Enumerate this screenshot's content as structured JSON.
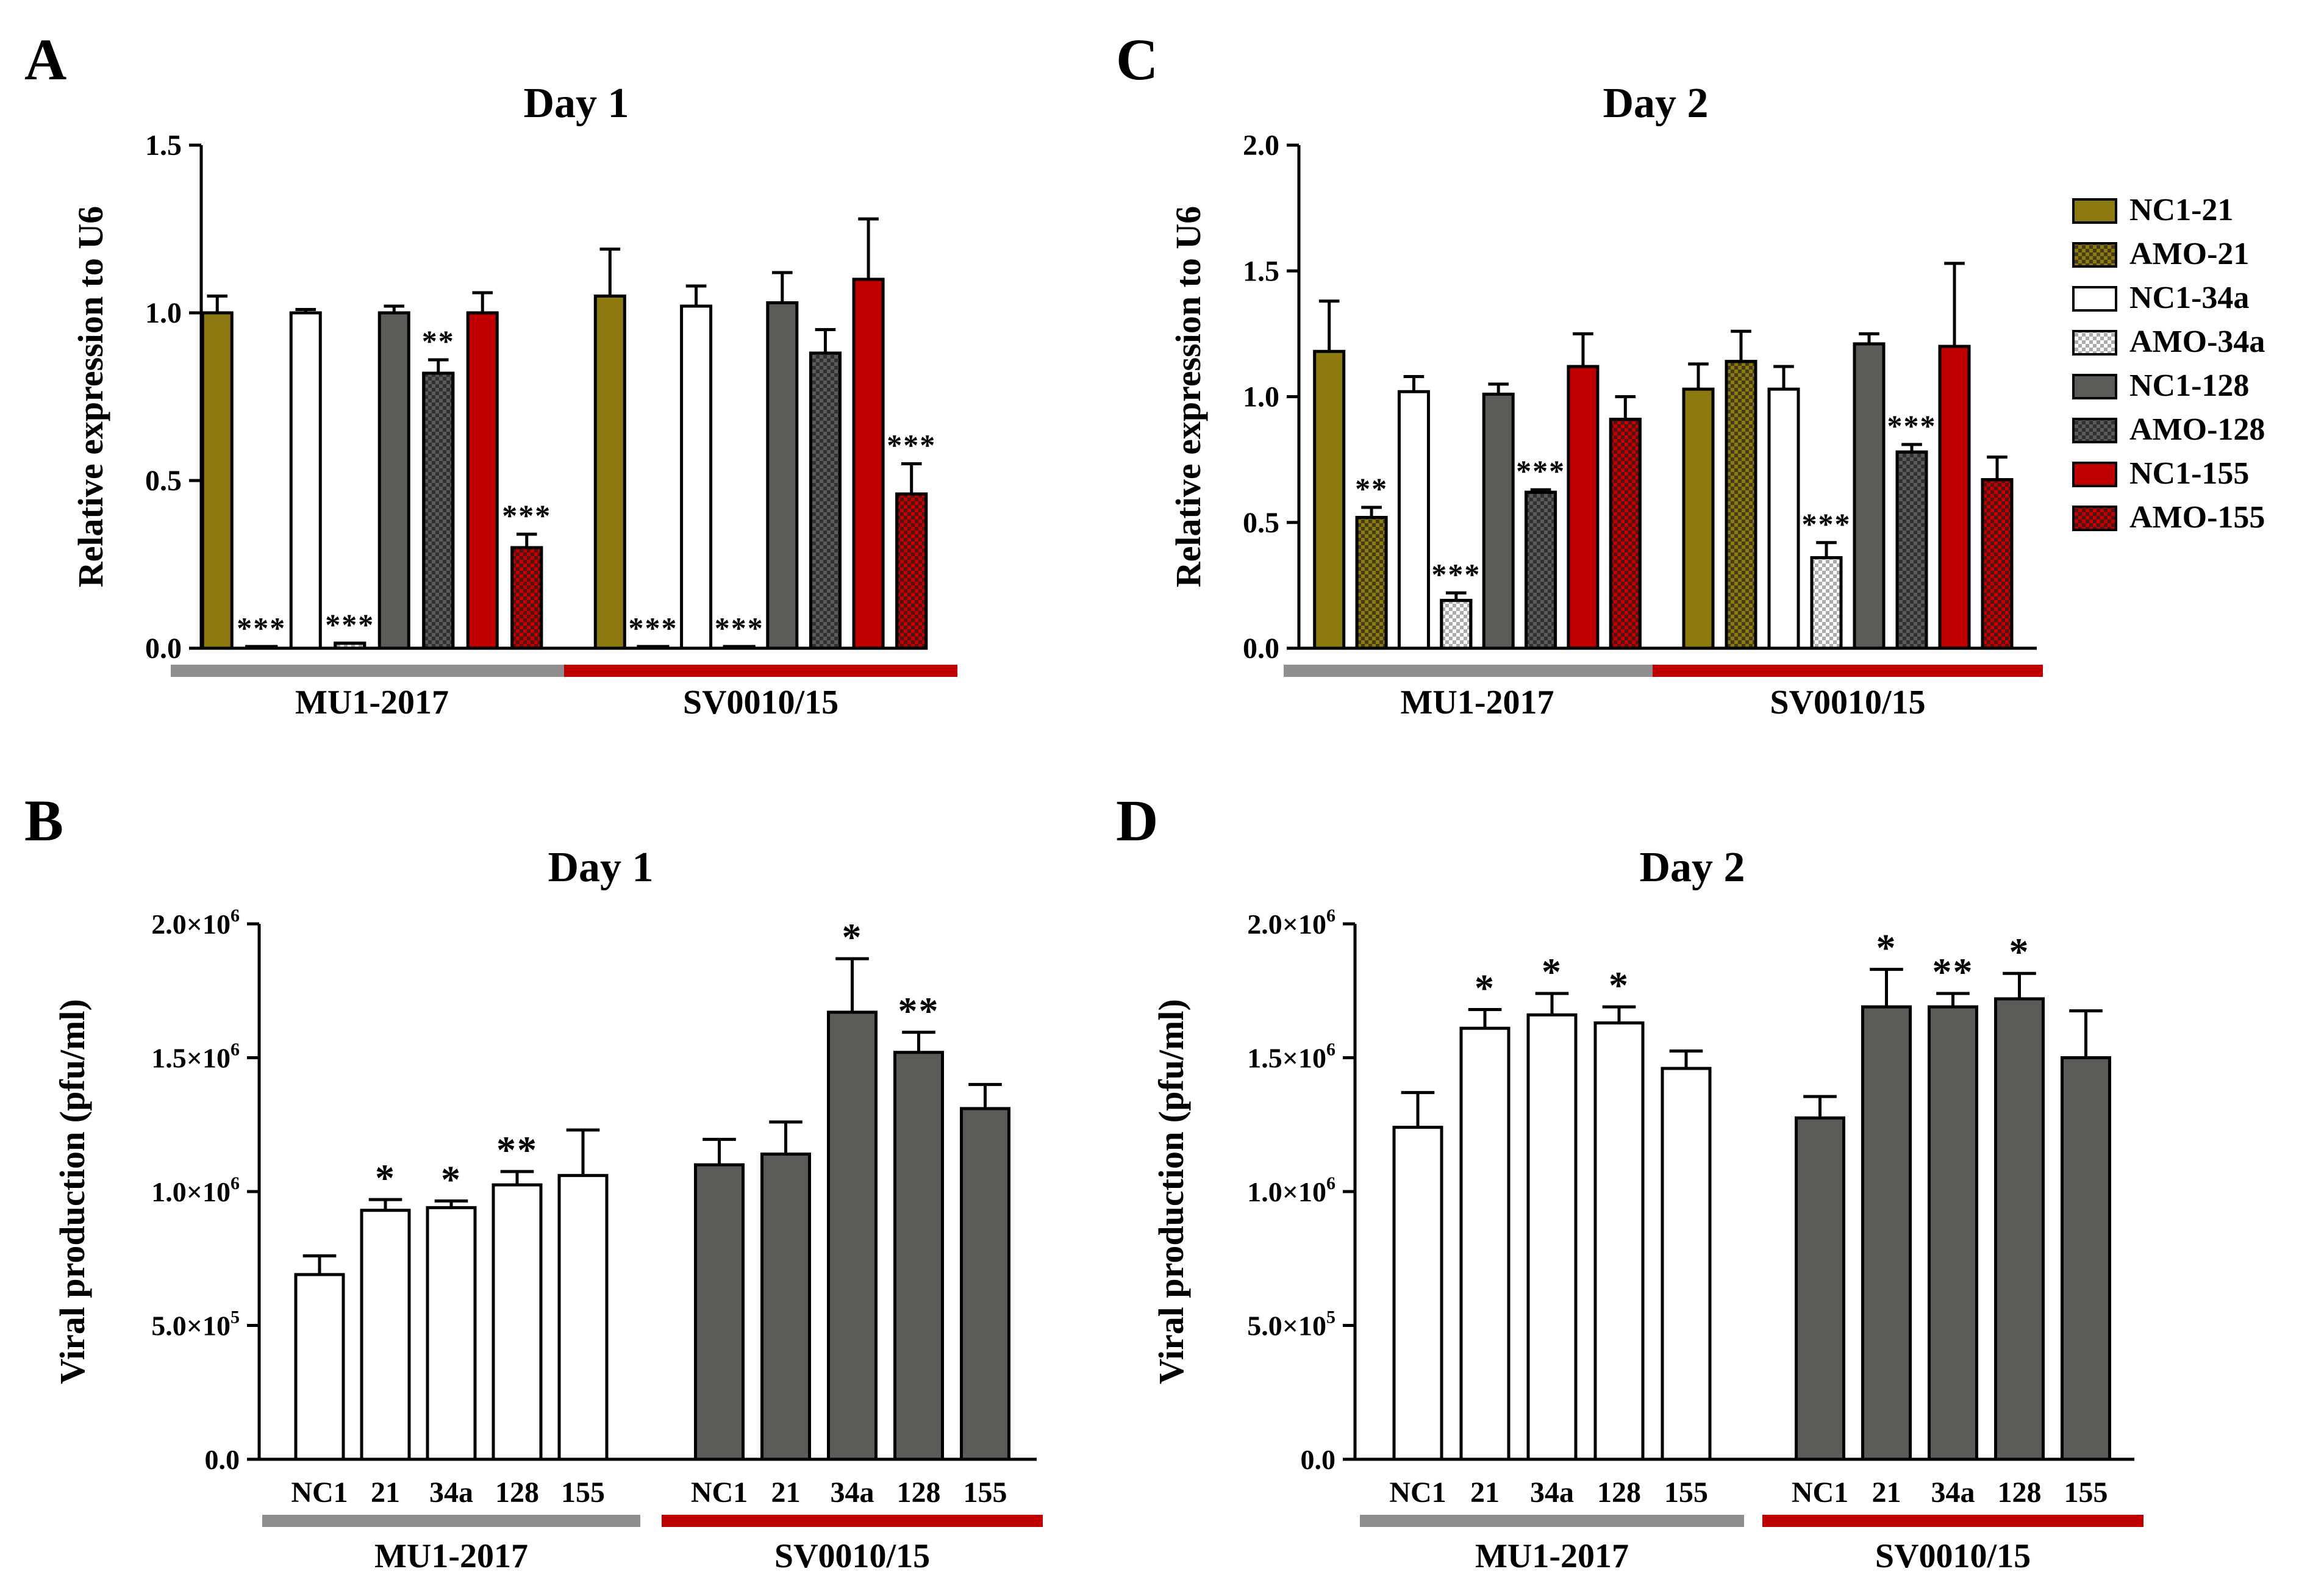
{
  "colors": {
    "nc21": "#8c7a10",
    "nc34a": "#ffffff",
    "nc128": "#5a5c58",
    "nc155": "#c00000",
    "group_bar_1": "#8e8e8e",
    "group_bar_2": "#c00000",
    "pattern_dark_dot": "#1a1a1a",
    "pattern_light_dot": "#888888"
  },
  "legend": {
    "items": [
      {
        "label": "NC1-21",
        "fill": "#8c7a10",
        "pattern": "solid"
      },
      {
        "label": "AMO-21",
        "fill": "#8c7a10",
        "pattern": "check"
      },
      {
        "label": "NC1-34a",
        "fill": "#ffffff",
        "pattern": "solid"
      },
      {
        "label": "AMO-34a",
        "fill": "#ffffff",
        "pattern": "check"
      },
      {
        "label": "NC1-128",
        "fill": "#5a5c58",
        "pattern": "solid"
      },
      {
        "label": "AMO-128",
        "fill": "#5a5c58",
        "pattern": "check"
      },
      {
        "label": "NC1-155",
        "fill": "#c00000",
        "pattern": "solid"
      },
      {
        "label": "AMO-155",
        "fill": "#c00000",
        "pattern": "check"
      }
    ]
  },
  "chart_data": [
    {
      "panel": "A",
      "type": "bar",
      "title": "Day 1",
      "ylabel": "Relative expression to U6",
      "ylim": [
        0,
        1.5
      ],
      "yticks": [
        0,
        0.5,
        1.0,
        1.5
      ],
      "ytick_labels": [
        "0.0",
        "0.5",
        "1.0",
        "1.5"
      ],
      "groups": [
        {
          "label": "MU1-2017",
          "bars": [
            {
              "name": "NC1-21",
              "value": 1.0,
              "error": 0.05,
              "sig": ""
            },
            {
              "name": "AMO-21",
              "value": 0.005,
              "error": 0,
              "sig": "***"
            },
            {
              "name": "NC1-34a",
              "value": 1.0,
              "error": 0.01,
              "sig": ""
            },
            {
              "name": "AMO-34a",
              "value": 0.015,
              "error": 0,
              "sig": "***"
            },
            {
              "name": "NC1-128",
              "value": 1.0,
              "error": 0.02,
              "sig": ""
            },
            {
              "name": "AMO-128",
              "value": 0.82,
              "error": 0.04,
              "sig": "**"
            },
            {
              "name": "NC1-155",
              "value": 1.0,
              "error": 0.06,
              "sig": ""
            },
            {
              "name": "AMO-155",
              "value": 0.3,
              "error": 0.04,
              "sig": "***"
            }
          ]
        },
        {
          "label": "SV0010/15",
          "bars": [
            {
              "name": "NC1-21",
              "value": 1.05,
              "error": 0.14,
              "sig": ""
            },
            {
              "name": "AMO-21",
              "value": 0.005,
              "error": 0,
              "sig": "***"
            },
            {
              "name": "NC1-34a",
              "value": 1.02,
              "error": 0.06,
              "sig": ""
            },
            {
              "name": "AMO-34a",
              "value": 0.005,
              "error": 0,
              "sig": "***"
            },
            {
              "name": "NC1-128",
              "value": 1.03,
              "error": 0.09,
              "sig": ""
            },
            {
              "name": "AMO-128",
              "value": 0.88,
              "error": 0.07,
              "sig": ""
            },
            {
              "name": "NC1-155",
              "value": 1.1,
              "error": 0.18,
              "sig": ""
            },
            {
              "name": "AMO-155",
              "value": 0.46,
              "error": 0.09,
              "sig": "***"
            }
          ]
        }
      ]
    },
    {
      "panel": "C",
      "type": "bar",
      "title": "Day 2",
      "ylabel": "Relative expression to U6",
      "ylim": [
        0,
        2.0
      ],
      "yticks": [
        0,
        0.5,
        1.0,
        1.5,
        2.0
      ],
      "ytick_labels": [
        "0.0",
        "0.5",
        "1.0",
        "1.5",
        "2.0"
      ],
      "groups": [
        {
          "label": "MU1-2017",
          "bars": [
            {
              "name": "NC1-21",
              "value": 1.18,
              "error": 0.2,
              "sig": ""
            },
            {
              "name": "AMO-21",
              "value": 0.52,
              "error": 0.04,
              "sig": "**"
            },
            {
              "name": "NC1-34a",
              "value": 1.02,
              "error": 0.06,
              "sig": ""
            },
            {
              "name": "AMO-34a",
              "value": 0.19,
              "error": 0.03,
              "sig": "***"
            },
            {
              "name": "NC1-128",
              "value": 1.01,
              "error": 0.04,
              "sig": ""
            },
            {
              "name": "AMO-128",
              "value": 0.62,
              "error": 0.01,
              "sig": "***"
            },
            {
              "name": "NC1-155",
              "value": 1.12,
              "error": 0.13,
              "sig": ""
            },
            {
              "name": "AMO-155",
              "value": 0.91,
              "error": 0.09,
              "sig": ""
            }
          ]
        },
        {
          "label": "SV0010/15",
          "bars": [
            {
              "name": "NC1-21",
              "value": 1.03,
              "error": 0.1,
              "sig": ""
            },
            {
              "name": "AMO-21",
              "value": 1.14,
              "error": 0.12,
              "sig": ""
            },
            {
              "name": "NC1-34a",
              "value": 1.03,
              "error": 0.09,
              "sig": ""
            },
            {
              "name": "AMO-34a",
              "value": 0.36,
              "error": 0.06,
              "sig": "***"
            },
            {
              "name": "NC1-128",
              "value": 1.21,
              "error": 0.04,
              "sig": ""
            },
            {
              "name": "AMO-128",
              "value": 0.78,
              "error": 0.03,
              "sig": "***"
            },
            {
              "name": "NC1-155",
              "value": 1.2,
              "error": 0.33,
              "sig": ""
            },
            {
              "name": "AMO-155",
              "value": 0.67,
              "error": 0.09,
              "sig": ""
            }
          ]
        }
      ]
    },
    {
      "panel": "B",
      "type": "bar",
      "title": "Day 1",
      "ylabel": "Viral production (pfu/ml)",
      "ylim": [
        0,
        2000000
      ],
      "yticks": [
        0,
        500000,
        1000000,
        1500000,
        2000000
      ],
      "ytick_labels": [
        {
          "base": "0.0",
          "exp": ""
        },
        {
          "base": "5.0×10",
          "exp": "5"
        },
        {
          "base": "1.0×10",
          "exp": "6"
        },
        {
          "base": "1.5×10",
          "exp": "6"
        },
        {
          "base": "2.0×10",
          "exp": "6"
        }
      ],
      "groups": [
        {
          "label": "MU1-2017",
          "bars": [
            {
              "name": "NC1",
              "value": 690000,
              "error": 70000,
              "sig": ""
            },
            {
              "name": "21",
              "value": 930000,
              "error": 40000,
              "sig": "*"
            },
            {
              "name": "34a",
              "value": 940000,
              "error": 25000,
              "sig": "*"
            },
            {
              "name": "128",
              "value": 1025000,
              "error": 50000,
              "sig": "**"
            },
            {
              "name": "155",
              "value": 1060000,
              "error": 170000,
              "sig": ""
            }
          ]
        },
        {
          "label": "SV0010/15",
          "bars": [
            {
              "name": "NC1",
              "value": 1100000,
              "error": 95000,
              "sig": ""
            },
            {
              "name": "21",
              "value": 1140000,
              "error": 120000,
              "sig": ""
            },
            {
              "name": "34a",
              "value": 1670000,
              "error": 200000,
              "sig": "*"
            },
            {
              "name": "128",
              "value": 1520000,
              "error": 75000,
              "sig": "**"
            },
            {
              "name": "155",
              "value": 1310000,
              "error": 90000,
              "sig": ""
            }
          ]
        }
      ]
    },
    {
      "panel": "D",
      "type": "bar",
      "title": "Day 2",
      "ylabel": "Viral production (pfu/ml)",
      "ylim": [
        0,
        2000000
      ],
      "yticks": [
        0,
        500000,
        1000000,
        1500000,
        2000000
      ],
      "ytick_labels": [
        {
          "base": "0.0",
          "exp": ""
        },
        {
          "base": "5.0×10",
          "exp": "5"
        },
        {
          "base": "1.0×10",
          "exp": "6"
        },
        {
          "base": "1.5×10",
          "exp": "6"
        },
        {
          "base": "2.0×10",
          "exp": "6"
        }
      ],
      "groups": [
        {
          "label": "MU1-2017",
          "bars": [
            {
              "name": "NC1",
              "value": 1240000,
              "error": 130000,
              "sig": ""
            },
            {
              "name": "21",
              "value": 1610000,
              "error": 70000,
              "sig": "*"
            },
            {
              "name": "34a",
              "value": 1660000,
              "error": 80000,
              "sig": "*"
            },
            {
              "name": "128",
              "value": 1630000,
              "error": 60000,
              "sig": "*"
            },
            {
              "name": "155",
              "value": 1460000,
              "error": 65000,
              "sig": ""
            }
          ]
        },
        {
          "label": "SV0010/15",
          "bars": [
            {
              "name": "NC1",
              "value": 1275000,
              "error": 80000,
              "sig": ""
            },
            {
              "name": "21",
              "value": 1690000,
              "error": 140000,
              "sig": "*"
            },
            {
              "name": "34a",
              "value": 1690000,
              "error": 50000,
              "sig": "**"
            },
            {
              "name": "128",
              "value": 1720000,
              "error": 95000,
              "sig": "*"
            },
            {
              "name": "155",
              "value": 1500000,
              "error": 175000,
              "sig": ""
            }
          ]
        }
      ]
    }
  ]
}
